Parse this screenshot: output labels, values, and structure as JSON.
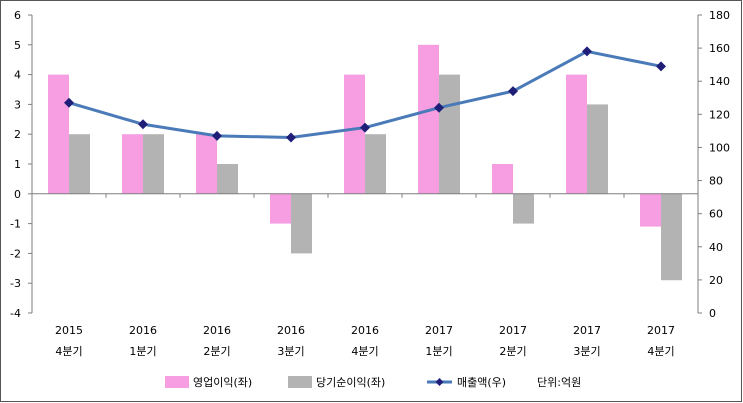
{
  "chart_data": {
    "type": "bar",
    "categories": [
      [
        "2015",
        "4분기"
      ],
      [
        "2016",
        "1분기"
      ],
      [
        "2016",
        "2분기"
      ],
      [
        "2016",
        "3분기"
      ],
      [
        "2016",
        "4분기"
      ],
      [
        "2017",
        "1분기"
      ],
      [
        "2017",
        "2분기"
      ],
      [
        "2017",
        "3분기"
      ],
      [
        "2017",
        "4분기"
      ]
    ],
    "series": [
      {
        "name": "영업이익(좌)",
        "type": "bar",
        "axis": "left",
        "color": "#f79ee2",
        "values": [
          4,
          2,
          2,
          -1,
          4,
          5,
          1,
          4,
          -1.1
        ]
      },
      {
        "name": "당기순이익(좌)",
        "type": "bar",
        "axis": "left",
        "color": "#b3b3b3",
        "values": [
          2,
          2,
          1,
          -2,
          2,
          4,
          -1,
          3,
          -2.9
        ]
      },
      {
        "name": "매출액(우)",
        "type": "line",
        "axis": "right",
        "color": "#4a7ab8",
        "marker_color": "#1f1f7a",
        "values": [
          127,
          114,
          107,
          106,
          112,
          124,
          134,
          158,
          149
        ]
      }
    ],
    "y_left": {
      "min": -4,
      "max": 6,
      "step": 1
    },
    "y_right": {
      "min": 0,
      "max": 180,
      "step": 20
    },
    "grid": false,
    "legend_position": "bottom",
    "unit_note": "단위:억원"
  }
}
